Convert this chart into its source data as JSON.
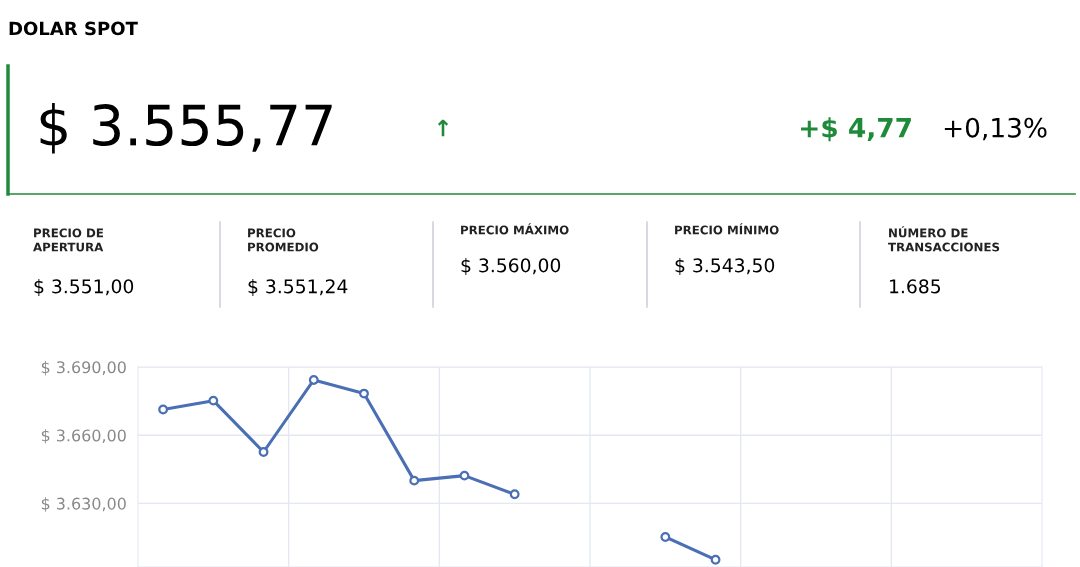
{
  "chart_data": {
    "type": "line",
    "title": "DOLAR SPOT",
    "annotations": [
      "$ 3.555,77",
      "↑",
      "+$ 4,77",
      "+0,13%",
      "PRECIO DE\nAPERTURA",
      "$ 3.551,00",
      "PRECIO\nPROMEDIO",
      "$ 3.551,24",
      "PRECIO MÁXIMO",
      "$ 3.560,00",
      "PRECIO MÍNIMO",
      "$ 3.543,50",
      "NÚMERO DE\nTRANSACCIONES",
      "1.685"
    ],
    "categories": [
      null,
      null,
      null,
      null,
      null,
      null,
      null,
      null,
      null,
      null,
      null,
      null,
      null,
      null,
      null,
      null,
      null,
      null
    ],
    "series": [
      {
        "color": "#4a6fb5",
        "values": [
          3671.3,
          3675.2,
          3652.6,
          3684.3,
          3678.3,
          3640.0,
          3642.2,
          3634.0,
          null,
          null,
          3615.2,
          3605.2,
          null,
          null,
          null,
          null,
          null,
          null
        ]
      }
    ],
    "ylim": [
      3602,
      3690
    ],
    "yticks": [
      {
        "value": 3690,
        "label": "$ 3.690,00"
      },
      {
        "value": 3660,
        "label": "$ 3.660,00"
      },
      {
        "value": 3630,
        "label": "$ 3.630,00"
      }
    ],
    "grid": true,
    "marker": "circle",
    "line_style": "solid",
    "legend": false
  }
}
